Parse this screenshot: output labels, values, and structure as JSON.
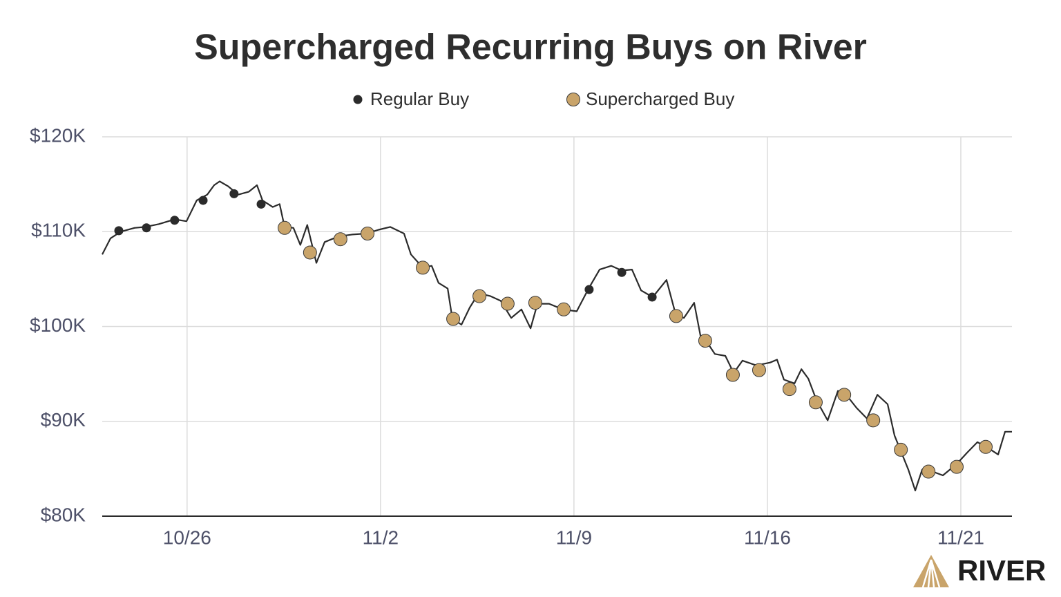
{
  "chart_data": {
    "type": "line",
    "title": "Supercharged Recurring Buys on River",
    "logo": "RIVER",
    "color": "#2b2b2b",
    "grid": true,
    "xlim": [
      22.93,
      55.85
    ],
    "xticks": [
      {
        "value": 26,
        "label": "10/26"
      },
      {
        "value": 33,
        "label": "11/2"
      },
      {
        "value": 40,
        "label": "11/9"
      },
      {
        "value": 47,
        "label": "11/16"
      },
      {
        "value": 54,
        "label": "11/21"
      }
    ],
    "ylim": [
      80000,
      120000
    ],
    "yticks": [
      {
        "value": 80000,
        "label": "$80K"
      },
      {
        "value": 90000,
        "label": "$90K"
      },
      {
        "value": 100000,
        "label": "$100K"
      },
      {
        "value": 110000,
        "label": "$110K"
      },
      {
        "value": 120000,
        "label": "$120K"
      }
    ],
    "x": [
      22.93,
      23.23,
      23.6,
      24.1,
      24.48,
      24.98,
      25.55,
      25.98,
      26.35,
      26.73,
      26.98,
      27.18,
      27.48,
      27.85,
      28.23,
      28.53,
      28.73,
      29.1,
      29.35,
      29.53,
      29.85,
      30.1,
      30.35,
      30.68,
      30.98,
      31.48,
      31.98,
      32.48,
      32.93,
      33.35,
      33.85,
      34.1,
      34.53,
      34.85,
      35.1,
      35.43,
      35.6,
      35.93,
      36.23,
      36.55,
      36.98,
      37.35,
      37.73,
      38.1,
      38.43,
      38.68,
      39.1,
      39.6,
      40.1,
      40.53,
      40.93,
      41.35,
      41.73,
      42.1,
      42.43,
      42.85,
      43.35,
      43.68,
      43.98,
      44.35,
      44.6,
      44.78,
      45.1,
      45.48,
      45.78,
      46.1,
      46.6,
      47.1,
      47.35,
      47.6,
      47.98,
      48.23,
      48.48,
      48.78,
      49.18,
      49.55,
      49.85,
      50.23,
      50.6,
      50.98,
      51.35,
      51.6,
      51.85,
      52.1,
      52.35,
      52.6,
      52.98,
      53.35,
      53.85,
      54.23,
      54.6,
      54.98,
      55.35,
      55.6,
      55.85
    ],
    "values": [
      107600,
      109300,
      110000,
      110400,
      110500,
      110800,
      111300,
      111100,
      113300,
      113900,
      114900,
      115300,
      114800,
      113900,
      114200,
      114900,
      113300,
      112600,
      112900,
      110500,
      110400,
      108600,
      110700,
      106700,
      108900,
      109500,
      109700,
      109800,
      110200,
      110500,
      109800,
      107600,
      106200,
      106400,
      104600,
      104000,
      100800,
      100200,
      102000,
      103500,
      103200,
      102700,
      100900,
      101800,
      99800,
      102400,
      102400,
      101800,
      101600,
      104000,
      106000,
      106400,
      105900,
      106000,
      103800,
      103100,
      104900,
      101300,
      100900,
      102500,
      98700,
      98500,
      97100,
      96900,
      95100,
      96400,
      95900,
      96200,
      96500,
      94400,
      94000,
      95500,
      94500,
      92200,
      90100,
      93200,
      92800,
      91400,
      90300,
      92800,
      91800,
      88500,
      86700,
      84900,
      82700,
      84900,
      84700,
      84300,
      85500,
      86700,
      87800,
      87200,
      86500,
      88900,
      88900
    ],
    "series": [
      {
        "name": "Regular Buy",
        "type": "scatter",
        "color": "#2b2b2b",
        "x": [
          23.53,
          24.53,
          25.55,
          26.58,
          27.7,
          28.68,
          40.55,
          41.73,
          42.83
        ],
        "values": [
          110100,
          110400,
          111200,
          113300,
          114000,
          112900,
          103900,
          105700,
          103100
        ]
      },
      {
        "name": "Supercharged Buy",
        "type": "scatter",
        "color": "#c9a46a",
        "x": [
          29.53,
          30.45,
          31.55,
          32.53,
          34.53,
          35.63,
          36.58,
          37.6,
          38.6,
          39.63,
          43.7,
          44.75,
          45.75,
          46.7,
          47.8,
          48.75,
          49.78,
          50.83,
          51.83,
          52.83,
          53.85,
          54.9
        ],
        "values": [
          110400,
          107800,
          109200,
          109800,
          106200,
          100800,
          103200,
          102400,
          102500,
          101800,
          101100,
          98500,
          94900,
          95400,
          93400,
          92000,
          92800,
          90100,
          87000,
          84700,
          85200,
          87300
        ]
      }
    ]
  }
}
